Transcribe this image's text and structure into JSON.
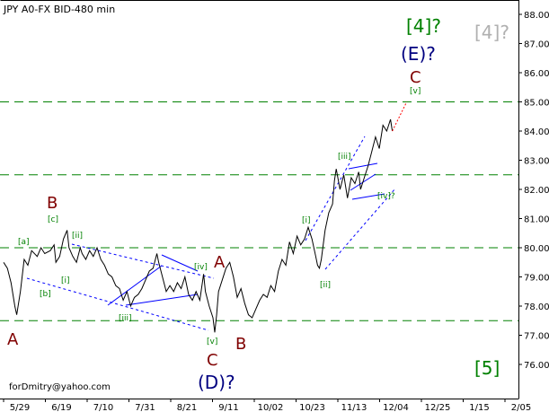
{
  "chart_data": {
    "type": "line",
    "title": "JPY A0-FX BID-480 min",
    "footer": "forDmitry@yahoo.com",
    "ylim": [
      75.0,
      88.4
    ],
    "yticks": [
      "76.00",
      "77.00",
      "78.00",
      "79.00",
      "80.00",
      "81.00",
      "82.00",
      "83.00",
      "84.00",
      "85.00",
      "86.00",
      "87.00",
      "88.00"
    ],
    "xticks": [
      "5/29",
      "6/19",
      "7/10",
      "7/31",
      "8/21",
      "9/11",
      "10/02",
      "10/23",
      "11/13",
      "12/04",
      "12/25",
      "1/15",
      "2/05"
    ],
    "horizontal_levels": [
      77.5,
      80.0,
      82.5,
      85.0
    ],
    "price_series": [
      [
        0,
        79.5
      ],
      [
        2,
        79.3
      ],
      [
        4,
        78.8
      ],
      [
        6,
        78.0
      ],
      [
        7,
        77.7
      ],
      [
        9,
        78.5
      ],
      [
        11,
        79.6
      ],
      [
        13,
        79.4
      ],
      [
        15,
        79.9
      ],
      [
        18,
        79.7
      ],
      [
        20,
        80.0
      ],
      [
        22,
        79.8
      ],
      [
        25,
        79.9
      ],
      [
        27,
        80.1
      ],
      [
        28,
        79.5
      ],
      [
        30,
        79.7
      ],
      [
        32,
        80.3
      ],
      [
        34,
        80.6
      ],
      [
        35,
        80.0
      ],
      [
        37,
        79.7
      ],
      [
        39,
        79.5
      ],
      [
        41,
        80.0
      ],
      [
        42,
        79.8
      ],
      [
        44,
        79.6
      ],
      [
        46,
        79.9
      ],
      [
        48,
        79.7
      ],
      [
        50,
        80.0
      ],
      [
        52,
        79.6
      ],
      [
        54,
        79.4
      ],
      [
        56,
        79.1
      ],
      [
        58,
        79.0
      ],
      [
        60,
        78.7
      ],
      [
        62,
        78.6
      ],
      [
        64,
        78.2
      ],
      [
        66,
        78.5
      ],
      [
        68,
        78.0
      ],
      [
        70,
        78.3
      ],
      [
        72,
        78.4
      ],
      [
        74,
        78.6
      ],
      [
        76,
        78.9
      ],
      [
        78,
        79.2
      ],
      [
        80,
        79.3
      ],
      [
        82,
        79.8
      ],
      [
        83,
        79.5
      ],
      [
        85,
        79.0
      ],
      [
        87,
        78.5
      ],
      [
        89,
        78.7
      ],
      [
        91,
        78.5
      ],
      [
        93,
        78.8
      ],
      [
        95,
        78.6
      ],
      [
        97,
        79.0
      ],
      [
        99,
        78.4
      ],
      [
        101,
        78.2
      ],
      [
        103,
        78.5
      ],
      [
        105,
        78.2
      ],
      [
        107,
        79.1
      ],
      [
        108,
        78.5
      ],
      [
        110,
        78.0
      ],
      [
        112,
        77.6
      ],
      [
        113,
        77.1
      ],
      [
        114,
        77.7
      ],
      [
        115,
        78.5
      ],
      [
        117,
        78.9
      ],
      [
        119,
        79.3
      ],
      [
        121,
        79.5
      ],
      [
        123,
        79.0
      ],
      [
        125,
        78.3
      ],
      [
        127,
        78.6
      ],
      [
        129,
        78.1
      ],
      [
        131,
        77.7
      ],
      [
        133,
        77.6
      ],
      [
        135,
        77.9
      ],
      [
        137,
        78.2
      ],
      [
        139,
        78.4
      ],
      [
        141,
        78.3
      ],
      [
        143,
        78.7
      ],
      [
        145,
        78.5
      ],
      [
        147,
        79.2
      ],
      [
        149,
        79.6
      ],
      [
        151,
        79.4
      ],
      [
        153,
        80.2
      ],
      [
        155,
        79.8
      ],
      [
        157,
        80.4
      ],
      [
        159,
        80.1
      ],
      [
        161,
        80.3
      ],
      [
        163,
        80.7
      ],
      [
        165,
        80.3
      ],
      [
        167,
        79.7
      ],
      [
        168,
        79.4
      ],
      [
        169,
        79.3
      ],
      [
        170,
        79.6
      ],
      [
        172,
        80.6
      ],
      [
        174,
        81.2
      ],
      [
        176,
        81.5
      ],
      [
        177,
        82.3
      ],
      [
        178,
        82.7
      ],
      [
        180,
        82.0
      ],
      [
        182,
        82.5
      ],
      [
        184,
        81.7
      ],
      [
        186,
        82.4
      ],
      [
        188,
        82.2
      ],
      [
        190,
        82.6
      ],
      [
        191,
        82.0
      ],
      [
        193,
        82.4
      ],
      [
        195,
        82.8
      ],
      [
        197,
        83.3
      ],
      [
        199,
        83.8
      ],
      [
        201,
        83.4
      ],
      [
        203,
        84.2
      ],
      [
        205,
        84.0
      ],
      [
        207,
        84.4
      ],
      [
        208,
        84.0
      ]
    ],
    "wave_labels": {
      "left_A": "A",
      "B_top": "B",
      "c_small": "[c]",
      "a_small": "[a]",
      "b_small": "[b]",
      "i_small_left": "[i]",
      "ii_small_left": "[ii]",
      "iii_small_left": "[iii]",
      "iv_small_left": "[iv]",
      "v_small_left": "[v]",
      "A_mid": "A",
      "B_mid": "B",
      "C_bottom": "C",
      "D_label": "(D)?",
      "i_right": "[i]",
      "ii_right": "[ii]",
      "iii_right": "[iii]",
      "iv_right": "[iv]?",
      "v_right": "[v]",
      "C_top": "C",
      "E_label": "(E)?",
      "w4_green": "[4]?",
      "w4_gray": "[4]?",
      "w5": "[5]"
    },
    "colors": {
      "grid_green": "#008000",
      "wave_red": "#800000",
      "wave_navy": "#000080",
      "small_green": "#008000",
      "channel_blue": "#0000ff",
      "projection_red": "#ff0000",
      "gray": "#b0b0b0"
    }
  }
}
